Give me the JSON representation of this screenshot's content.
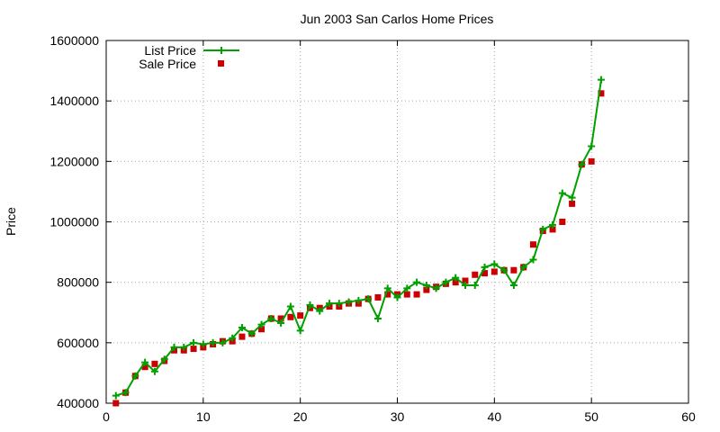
{
  "chart_data": {
    "type": "line",
    "title": "Jun 2003 San Carlos Home Prices",
    "xlabel": "",
    "ylabel": "Price",
    "xlim": [
      0,
      60
    ],
    "ylim": [
      400000,
      1600000
    ],
    "xticks": [
      "0",
      "10",
      "20",
      "30",
      "40",
      "50",
      "60"
    ],
    "yticks": [
      "400000",
      "600000",
      "800000",
      "1000000",
      "1200000",
      "1400000",
      "1600000"
    ],
    "grid": true,
    "legend_position": "top-left",
    "x": [
      1,
      2,
      3,
      4,
      5,
      6,
      7,
      8,
      9,
      10,
      11,
      12,
      13,
      14,
      15,
      16,
      17,
      18,
      19,
      20,
      21,
      22,
      23,
      24,
      25,
      26,
      27,
      28,
      29,
      30,
      31,
      32,
      33,
      34,
      35,
      36,
      37,
      38,
      39,
      40,
      41,
      42,
      43,
      44,
      45,
      46,
      47,
      48,
      49,
      50,
      51
    ],
    "series": [
      {
        "name": "List Price",
        "style": "line-with-plus-markers",
        "color": "#00a000",
        "values": [
          425000,
          435000,
          490000,
          535000,
          505000,
          545000,
          585000,
          585000,
          600000,
          595000,
          600000,
          600000,
          615000,
          650000,
          630000,
          660000,
          680000,
          665000,
          720000,
          640000,
          725000,
          705000,
          730000,
          730000,
          735000,
          740000,
          745000,
          680000,
          780000,
          750000,
          780000,
          800000,
          790000,
          780000,
          800000,
          815000,
          790000,
          790000,
          850000,
          860000,
          840000,
          790000,
          850000,
          875000,
          975000,
          990000,
          1095000,
          1080000,
          1190000,
          1250000,
          1470000
        ]
      },
      {
        "name": "Sale Price",
        "style": "square-markers",
        "color": "#cc0000",
        "values": [
          400000,
          435000,
          490000,
          520000,
          530000,
          540000,
          575000,
          575000,
          580000,
          585000,
          595000,
          605000,
          605000,
          620000,
          630000,
          645000,
          680000,
          680000,
          685000,
          690000,
          715000,
          715000,
          720000,
          720000,
          730000,
          730000,
          745000,
          750000,
          760000,
          760000,
          760000,
          760000,
          775000,
          785000,
          795000,
          800000,
          805000,
          825000,
          830000,
          835000,
          840000,
          840000,
          850000,
          925000,
          970000,
          975000,
          1000000,
          1060000,
          1190000,
          1200000,
          1425000
        ]
      }
    ]
  }
}
